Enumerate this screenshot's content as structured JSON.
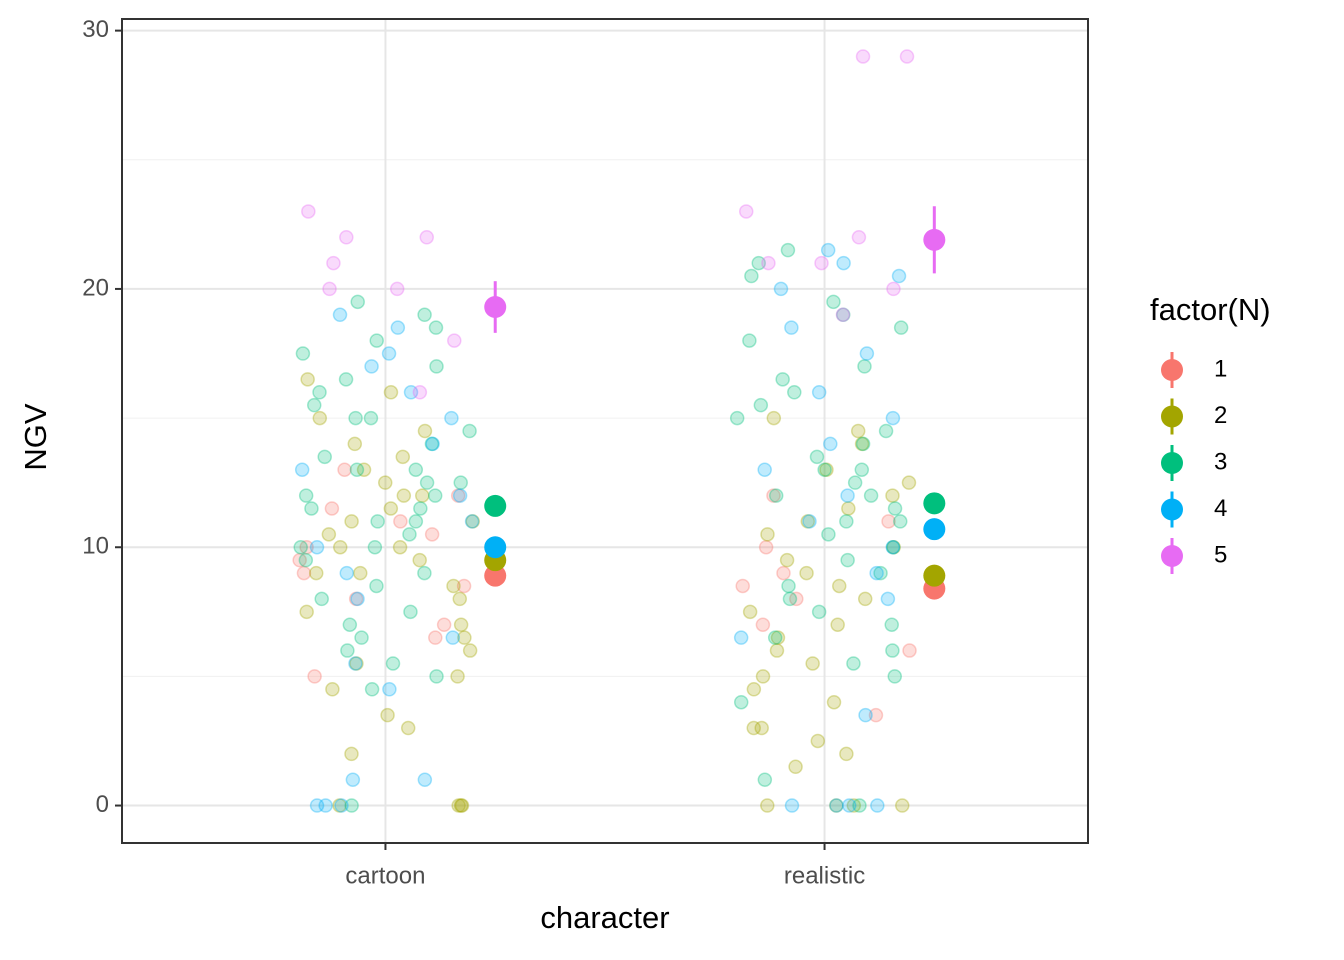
{
  "chart_data": {
    "type": "strip",
    "x_label": "character",
    "y_label": "NGV",
    "categories": [
      "cartoon",
      "realistic"
    ],
    "ylim": [
      -1.45,
      30.45
    ],
    "yticks": [
      0,
      10,
      20,
      30
    ],
    "minor_grid": [
      5,
      15,
      25
    ],
    "grid": true,
    "legend_title": "factor(N)",
    "legend_position": "right",
    "series": [
      {
        "name": "1",
        "color": "#F8766D",
        "values": [
          [
            5,
            7,
            8.5,
            9,
            9.5,
            10,
            10.5,
            11,
            12,
            6.5,
            8,
            11.5,
            13
          ],
          [
            3.5,
            6,
            7,
            8,
            8.5,
            9,
            10,
            11,
            12
          ]
        ],
        "mean": [
          8.9,
          8.4
        ],
        "error": [
          0.3,
          0.3
        ]
      },
      {
        "name": "2",
        "color": "#A3A500",
        "values": [
          [
            0,
            0,
            0,
            0,
            2,
            3,
            3.5,
            4.5,
            5,
            5.5,
            6,
            6.5,
            7,
            7.5,
            8,
            8.5,
            9,
            9,
            9.5,
            10,
            10,
            10.5,
            11,
            11,
            11.5,
            12,
            12,
            12.5,
            13,
            13.5,
            14,
            14.5,
            15,
            16,
            16.5
          ],
          [
            0,
            0,
            0,
            0,
            1.5,
            2,
            2.5,
            3,
            3,
            4,
            4.5,
            5,
            5.5,
            6,
            6.5,
            7,
            7.5,
            8,
            8.5,
            9,
            9.5,
            10,
            10.5,
            11,
            11.5,
            12,
            12.5,
            13,
            14,
            14.5,
            15
          ]
        ],
        "mean": [
          9.5,
          8.9
        ],
        "error": [
          0.3,
          0.3
        ]
      },
      {
        "name": "3",
        "color": "#00BF7D",
        "values": [
          [
            0,
            4.5,
            5,
            5.5,
            6,
            6.5,
            7,
            7.5,
            8,
            8.5,
            9,
            9.5,
            10,
            10,
            10.5,
            11,
            11,
            11.5,
            11.5,
            12,
            12,
            12.5,
            12.5,
            13,
            13,
            13.5,
            14,
            14.5,
            15,
            15,
            15.5,
            16,
            16.5,
            17,
            17.5,
            18,
            18.5,
            19,
            19.5
          ],
          [
            0,
            1,
            4,
            5,
            5.5,
            6,
            6.5,
            7,
            7.5,
            8,
            8.5,
            9,
            9.5,
            10,
            10.5,
            11,
            11,
            11.5,
            12,
            12,
            12.5,
            13,
            13,
            13.5,
            14,
            14.5,
            15,
            15.5,
            16,
            16.5,
            17,
            18,
            18.5,
            19,
            19.5,
            20.5,
            21,
            21.5
          ]
        ],
        "mean": [
          11.6,
          11.7
        ],
        "error": [
          0.3,
          0.3
        ]
      },
      {
        "name": "4",
        "color": "#00B0F6",
        "values": [
          [
            0,
            0,
            0,
            1,
            1,
            4.5,
            5.5,
            6.5,
            8,
            9,
            10,
            11,
            12,
            13,
            14,
            15,
            16,
            17,
            17.5,
            18.5,
            19
          ],
          [
            0,
            0,
            0,
            0,
            3.5,
            6.5,
            8,
            9,
            10,
            11,
            12,
            13,
            14,
            15,
            16,
            17.5,
            18.5,
            20,
            20.5,
            21,
            21.5
          ]
        ],
        "mean": [
          10.0,
          10.7
        ],
        "error": [
          0.4,
          0.4
        ]
      },
      {
        "name": "5",
        "color": "#E76BF3",
        "values": [
          [
            16,
            18,
            20,
            20,
            21,
            22,
            22,
            23
          ],
          [
            19,
            20,
            21,
            21,
            22,
            23,
            29,
            29
          ]
        ],
        "mean": [
          19.3,
          21.9
        ],
        "error": [
          1.0,
          1.3
        ]
      }
    ]
  }
}
